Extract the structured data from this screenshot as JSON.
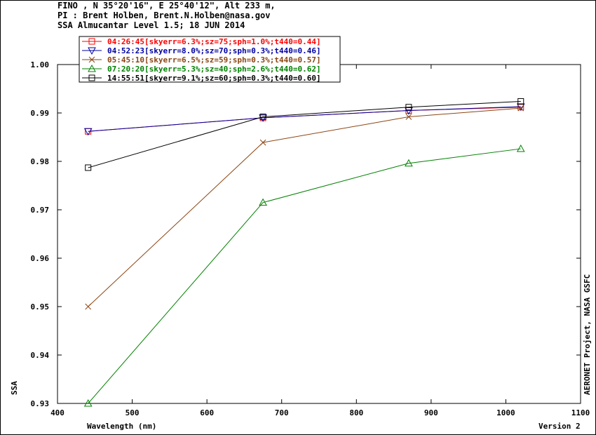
{
  "header": {
    "line1": "FINO , N 35°20'16\", E 25°40'12\", Alt 233 m,",
    "line2": "PI : Brent Holben, Brent.N.Holben@nasa.gov",
    "line3": "SSA Almucantar Level 1.5; 18 JUN 2014"
  },
  "footer": {
    "credit": "AERONET Project, NASA GSFC",
    "version": "Version 2"
  },
  "chart_data": {
    "type": "line",
    "xlabel": "Wavelength (nm)",
    "ylabel": "SSA",
    "xlim": [
      400,
      1100
    ],
    "ylim": [
      0.93,
      1.0
    ],
    "xticks": [
      400,
      500,
      600,
      700,
      800,
      900,
      1000,
      1100
    ],
    "yticks": [
      0.93,
      0.94,
      0.95,
      0.96,
      0.97,
      0.98,
      0.99,
      1.0
    ],
    "ytick_labels": [
      "0.93",
      "0.94",
      "0.95",
      "0.96",
      "0.97",
      "0.98",
      "0.99",
      "1.00"
    ],
    "legend_position": "top-left",
    "grid": false,
    "x": [
      441,
      675,
      870,
      1020
    ],
    "series": [
      {
        "name": "04:26:45[skyerr=6.3%;sz=75;sph=1.0%;t440=0.44]",
        "color": "#ff0000",
        "marker": "square",
        "values": [
          0.9862,
          0.989,
          0.9905,
          0.9912
        ]
      },
      {
        "name": "04:52:23[skyerr=8.0%;sz=70;sph=0.3%;t440=0.46]",
        "color": "#0000a0",
        "marker": "triangle-down",
        "values": [
          0.9862,
          0.989,
          0.9905,
          0.9913
        ]
      },
      {
        "name": "05:45:10[skyerr=6.5%;sz=59;sph=0.3%;t440=0.57]",
        "color": "#8b4513",
        "marker": "x",
        "values": [
          0.95,
          0.9839,
          0.9892,
          0.991
        ]
      },
      {
        "name": "07:20:20[skyerr=5.3%;sz=40;sph=2.6%;t440=0.62]",
        "color": "#008000",
        "marker": "triangle-up",
        "values": [
          0.93,
          0.9715,
          0.9796,
          0.9826
        ]
      },
      {
        "name": "14:55:51[skyerr=9.1%;sz=60;sph=0.3%;t440=0.60]",
        "color": "#000000",
        "marker": "square",
        "values": [
          0.9787,
          0.9892,
          0.9912,
          0.9924
        ]
      }
    ]
  }
}
